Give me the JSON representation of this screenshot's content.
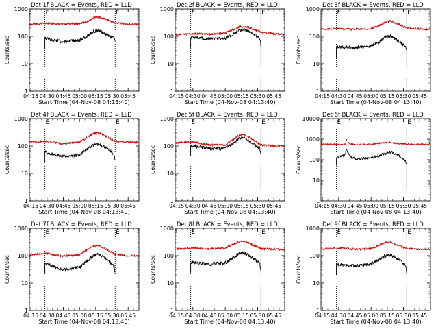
{
  "chart_data": [
    {
      "type": "line",
      "title": "Det 1f BLACK = Events, RED = LLD",
      "xlabel": "Start Time (04-Nov-08 04:13:40)",
      "ylabel": "Counts/sec",
      "yscale": "log",
      "ylim": [
        1,
        1000
      ],
      "yticks": [
        "1",
        "10",
        "100",
        "1000"
      ],
      "xlim": [
        "04:13:40",
        "05:55:00"
      ],
      "xticks": [
        "04:15",
        "04:30",
        "04:45",
        "05:00",
        "05:15",
        "05:30",
        "05:45"
      ],
      "vlines": [
        "04:28",
        "05:33"
      ],
      "markers": [
        "E",
        "E"
      ],
      "series": [
        {
          "name": "RED = LLD",
          "color": "#cc0000",
          "x": [
            "04:14",
            "04:30",
            "04:45",
            "05:00",
            "05:07",
            "05:13",
            "05:18",
            "05:25",
            "05:33",
            "05:45",
            "05:55"
          ],
          "values": [
            270,
            300,
            285,
            290,
            340,
            470,
            510,
            410,
            310,
            280,
            270
          ]
        },
        {
          "name": "BLACK = Events",
          "color": "#000000",
          "x": [
            "04:28",
            "04:30",
            "04:45",
            "05:00",
            "05:07",
            "05:13",
            "05:18",
            "05:25",
            "05:32",
            "05:33"
          ],
          "values": [
            85,
            80,
            62,
            72,
            100,
            155,
            160,
            120,
            85,
            65
          ]
        }
      ]
    },
    {
      "type": "line",
      "title": "Det 2f BLACK = Events, RED = LLD",
      "xlabel": "Start Time (04-Nov-08 04:13:40)",
      "ylabel": "Counts/sec",
      "yscale": "log",
      "ylim": [
        1,
        1000
      ],
      "yticks": [
        "1",
        "10",
        "100",
        "1000"
      ],
      "xlim": [
        "04:13:40",
        "05:55:00"
      ],
      "xticks": [
        "04:15",
        "04:30",
        "04:45",
        "05:00",
        "05:15",
        "05:30",
        "05:45"
      ],
      "vlines": [
        "04:28",
        "05:33"
      ],
      "markers": [
        "E",
        "E"
      ],
      "series": [
        {
          "name": "RED = LLD",
          "color": "#cc0000",
          "x": [
            "04:14",
            "04:30",
            "04:45",
            "05:00",
            "05:07",
            "05:13",
            "05:18",
            "05:25",
            "05:33",
            "05:45",
            "05:55"
          ],
          "values": [
            115,
            125,
            120,
            135,
            175,
            220,
            230,
            190,
            140,
            125,
            120
          ]
        },
        {
          "name": "BLACK = Events",
          "color": "#000000",
          "x": [
            "04:28",
            "04:30",
            "04:45",
            "05:00",
            "05:07",
            "05:13",
            "05:18",
            "05:25",
            "05:32",
            "05:33"
          ],
          "values": [
            95,
            90,
            80,
            85,
            120,
            170,
            175,
            130,
            85,
            45
          ]
        }
      ]
    },
    {
      "type": "line",
      "title": "Det 3f BLACK = Events, RED = LLD",
      "xlabel": "Start Time (04-Nov-08 04:13:40)",
      "ylabel": "Counts/sec",
      "yscale": "log",
      "ylim": [
        1,
        1000
      ],
      "yticks": [
        "1",
        "10",
        "100",
        "1000"
      ],
      "xlim": [
        "04:13:40",
        "05:55:00"
      ],
      "xticks": [
        "04:15",
        "04:30",
        "04:45",
        "05:00",
        "05:15",
        "05:30",
        "05:45"
      ],
      "vlines": [
        "04:28",
        "05:33"
      ],
      "markers": [
        "E",
        "E"
      ],
      "series": [
        {
          "name": "RED = LLD",
          "color": "#cc0000",
          "x": [
            "04:14",
            "04:30",
            "04:45",
            "05:00",
            "05:07",
            "05:13",
            "05:18",
            "05:25",
            "05:33",
            "05:45",
            "05:55"
          ],
          "values": [
            180,
            190,
            180,
            190,
            240,
            330,
            360,
            280,
            200,
            185,
            180
          ]
        },
        {
          "name": "BLACK = Events",
          "color": "#000000",
          "x": [
            "04:28",
            "04:30",
            "04:45",
            "05:00",
            "05:07",
            "05:13",
            "05:18",
            "05:25",
            "05:32",
            "05:33"
          ],
          "values": [
            40,
            42,
            38,
            45,
            60,
            95,
            100,
            70,
            40,
            28
          ]
        }
      ]
    },
    {
      "type": "line",
      "title": "Det 4f BLACK = Events, RED = LLD",
      "xlabel": "Start Time (04-Nov-08 04:13:40)",
      "ylabel": "Counts/sec",
      "yscale": "log",
      "ylim": [
        1,
        1000
      ],
      "yticks": [
        "1",
        "10",
        "100",
        "1000"
      ],
      "xlim": [
        "04:13:40",
        "05:55:00"
      ],
      "xticks": [
        "04:15",
        "04:30",
        "04:45",
        "05:00",
        "05:15",
        "05:30",
        "05:45"
      ],
      "vlines": [
        "04:28",
        "05:33"
      ],
      "markers": [
        "E",
        "E"
      ],
      "series": [
        {
          "name": "RED = LLD",
          "color": "#cc0000",
          "x": [
            "04:14",
            "04:30",
            "04:45",
            "05:00",
            "05:07",
            "05:13",
            "05:18",
            "05:25",
            "05:33",
            "05:45",
            "05:55"
          ],
          "values": [
            140,
            150,
            120,
            140,
            200,
            290,
            300,
            220,
            150,
            140,
            135
          ]
        },
        {
          "name": "BLACK = Events",
          "color": "#000000",
          "x": [
            "04:28",
            "04:30",
            "04:45",
            "05:00",
            "05:07",
            "05:13",
            "05:18",
            "05:25",
            "05:32",
            "05:33"
          ],
          "values": [
            60,
            55,
            42,
            48,
            75,
            110,
            115,
            90,
            50,
            30
          ]
        }
      ]
    },
    {
      "type": "line",
      "title": "Det 5f BLACK = Events, RED = LLD",
      "xlabel": "Start Time (04-Nov-08 04:13:40)",
      "ylabel": "Counts/sec",
      "yscale": "log",
      "ylim": [
        1,
        1000
      ],
      "yticks": [
        "1",
        "10",
        "100",
        "1000"
      ],
      "xlim": [
        "04:13:40",
        "05:55:00"
      ],
      "xticks": [
        "04:15",
        "04:30",
        "04:45",
        "05:00",
        "05:15",
        "05:30",
        "05:45"
      ],
      "vlines": [
        "04:28",
        "05:33"
      ],
      "markers": [
        "E",
        "E"
      ],
      "series": [
        {
          "name": "RED = LLD",
          "color": "#cc0000",
          "x": [
            "04:14",
            "04:30",
            "04:45",
            "05:00",
            "05:07",
            "05:13",
            "05:18",
            "05:25",
            "05:33",
            "05:45",
            "05:55"
          ],
          "values": [
            130,
            140,
            110,
            110,
            170,
            250,
            260,
            180,
            110,
            100,
            100
          ]
        },
        {
          "name": "BLACK = Events",
          "color": "#000000",
          "x": [
            "04:28",
            "04:30",
            "04:45",
            "05:00",
            "05:07",
            "05:13",
            "05:18",
            "05:25",
            "05:32",
            "05:33"
          ],
          "values": [
            105,
            100,
            80,
            80,
            130,
            190,
            195,
            130,
            80,
            45
          ]
        }
      ]
    },
    {
      "type": "line",
      "title": "Det 6f BLACK = Events, RED = LLD",
      "xlabel": "Start Time (04-Nov-08 04:13:40)",
      "ylabel": "Counts/sec",
      "yscale": "log",
      "ylim": [
        1,
        10000
      ],
      "yticks": [
        "1",
        "10",
        "100",
        "1000",
        "10000"
      ],
      "xlim": [
        "04:13:40",
        "05:55:00"
      ],
      "xticks": [
        "04:15",
        "04:30",
        "04:45",
        "05:00",
        "05:15",
        "05:30",
        "05:45"
      ],
      "vlines": [
        "04:28",
        "05:33"
      ],
      "markers": [
        "E",
        "E"
      ],
      "series": [
        {
          "name": "RED = LLD",
          "color": "#cc0000",
          "x": [
            "04:14",
            "04:30",
            "04:36",
            "04:37",
            "04:40",
            "04:45",
            "05:00",
            "05:10",
            "05:18",
            "05:25",
            "05:33",
            "05:45",
            "05:55"
          ],
          "values": [
            560,
            560,
            560,
            950,
            600,
            550,
            560,
            650,
            700,
            620,
            570,
            560,
            560
          ]
        },
        {
          "name": "BLACK = Events",
          "color": "#000000",
          "x": [
            "04:28",
            "04:32",
            "04:36",
            "04:37",
            "04:40",
            "04:45",
            "05:00",
            "05:10",
            "05:18",
            "05:25",
            "05:32",
            "05:33"
          ],
          "values": [
            130,
            150,
            170,
            310,
            160,
            110,
            120,
            180,
            230,
            170,
            90,
            55
          ]
        }
      ]
    },
    {
      "type": "line",
      "title": "Det 7f BLACK = Events, RED = LLD",
      "xlabel": "Start Time (04-Nov-08 04:13:40)",
      "ylabel": "Counts/sec",
      "yscale": "log",
      "ylim": [
        1,
        1000
      ],
      "yticks": [
        "1",
        "10",
        "100",
        "1000"
      ],
      "xlim": [
        "04:13:40",
        "05:55:00"
      ],
      "xticks": [
        "04:15",
        "04:30",
        "04:45",
        "05:00",
        "05:15",
        "05:30",
        "05:45"
      ],
      "vlines": [
        "04:28",
        "05:33"
      ],
      "markers": [
        "E",
        "E"
      ],
      "series": [
        {
          "name": "RED = LLD",
          "color": "#cc0000",
          "x": [
            "04:14",
            "04:30",
            "04:45",
            "05:00",
            "05:07",
            "05:13",
            "05:18",
            "05:25",
            "05:33",
            "05:45",
            "05:55"
          ],
          "values": [
            110,
            120,
            95,
            110,
            160,
            220,
            230,
            170,
            110,
            100,
            100
          ]
        },
        {
          "name": "BLACK = Events",
          "color": "#000000",
          "x": [
            "04:28",
            "04:30",
            "04:45",
            "05:00",
            "05:07",
            "05:13",
            "05:18",
            "05:25",
            "05:32",
            "05:33"
          ],
          "values": [
            55,
            50,
            30,
            38,
            65,
            100,
            110,
            75,
            40,
            22
          ]
        }
      ]
    },
    {
      "type": "line",
      "title": "Det 8f BLACK = Events, RED = LLD",
      "xlabel": "Start Time (04-Nov-08 04:13:40)",
      "ylabel": "Counts/sec",
      "yscale": "log",
      "ylim": [
        1,
        1000
      ],
      "yticks": [
        "1",
        "10",
        "100",
        "1000"
      ],
      "xlim": [
        "04:13:40",
        "05:55:00"
      ],
      "xticks": [
        "04:15",
        "04:30",
        "04:45",
        "05:00",
        "05:15",
        "05:30",
        "05:45"
      ],
      "vlines": [
        "04:28",
        "05:33"
      ],
      "markers": [
        "E",
        "E"
      ],
      "series": [
        {
          "name": "RED = LLD",
          "color": "#cc0000",
          "x": [
            "04:14",
            "04:30",
            "04:45",
            "05:00",
            "05:07",
            "05:13",
            "05:18",
            "05:25",
            "05:33",
            "05:45",
            "05:55"
          ],
          "values": [
            170,
            190,
            175,
            190,
            250,
            330,
            340,
            250,
            180,
            170,
            165
          ]
        },
        {
          "name": "BLACK = Events",
          "color": "#000000",
          "x": [
            "04:28",
            "04:30",
            "04:45",
            "05:00",
            "05:07",
            "05:13",
            "05:18",
            "05:25",
            "05:32",
            "05:33"
          ],
          "values": [
            60,
            55,
            48,
            55,
            80,
            120,
            125,
            85,
            50,
            25
          ]
        }
      ]
    },
    {
      "type": "line",
      "title": "Det 9f BLACK = Events, RED = LLD",
      "xlabel": "Start Time (04-Nov-08 04:13:40)",
      "ylabel": "Counts/sec",
      "yscale": "log",
      "ylim": [
        1,
        1000
      ],
      "yticks": [
        "1",
        "10",
        "100",
        "1000"
      ],
      "xlim": [
        "04:13:40",
        "05:55:00"
      ],
      "xticks": [
        "04:15",
        "04:30",
        "04:45",
        "05:00",
        "05:15",
        "05:30",
        "05:45"
      ],
      "vlines": [
        "04:28",
        "05:33"
      ],
      "markers": [
        "E",
        "E"
      ],
      "series": [
        {
          "name": "RED = LLD",
          "color": "#cc0000",
          "x": [
            "04:14",
            "04:30",
            "04:45",
            "05:00",
            "05:07",
            "05:13",
            "05:18",
            "05:25",
            "05:33",
            "05:45",
            "05:55"
          ],
          "values": [
            175,
            185,
            170,
            180,
            230,
            300,
            310,
            240,
            180,
            170,
            170
          ]
        },
        {
          "name": "BLACK = Events",
          "color": "#000000",
          "x": [
            "04:28",
            "04:30",
            "04:45",
            "05:00",
            "05:07",
            "05:13",
            "05:18",
            "05:25",
            "05:32",
            "05:33"
          ],
          "values": [
            50,
            48,
            42,
            50,
            70,
            100,
            105,
            75,
            45,
            22
          ]
        }
      ]
    }
  ]
}
